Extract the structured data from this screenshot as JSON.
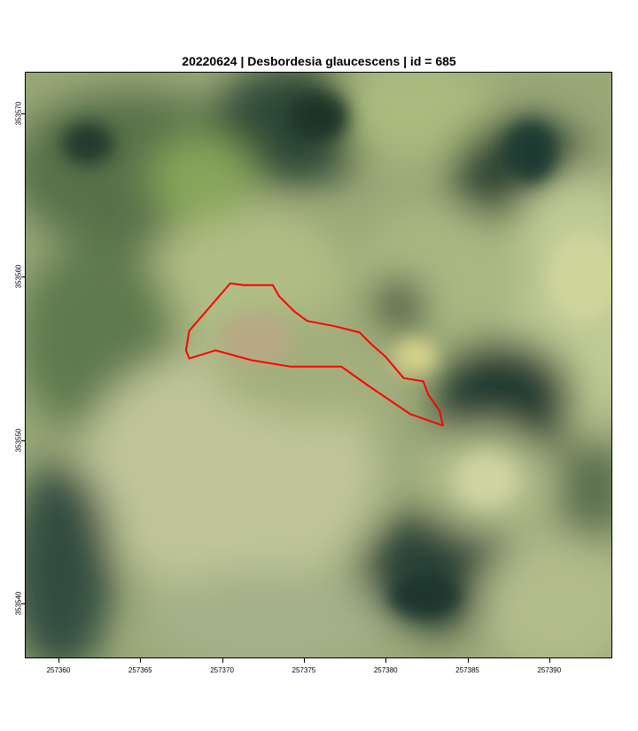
{
  "title": "20220624 | Desbordesia glaucescens | id = 685",
  "colors": {
    "polygon_stroke": "#ff0000",
    "axis": "#000000"
  },
  "map": {
    "x_range": [
      257358,
      257393.8
    ],
    "y_range": [
      353536.7,
      353572.5
    ],
    "x_ticks": [
      {
        "value": 257360,
        "label": "257360"
      },
      {
        "value": 257365,
        "label": "257365"
      },
      {
        "value": 257370,
        "label": "257370"
      },
      {
        "value": 257375,
        "label": "257375"
      },
      {
        "value": 257380,
        "label": "257380"
      },
      {
        "value": 257385,
        "label": "257385"
      },
      {
        "value": 257390,
        "label": "257390"
      }
    ],
    "y_ticks": [
      {
        "value": 353540,
        "label": "353540"
      },
      {
        "value": 353550,
        "label": "353550"
      },
      {
        "value": 353560,
        "label": "353560"
      },
      {
        "value": 353570,
        "label": "353570"
      }
    ],
    "crown_polygon": [
      [
        257370.5,
        353559.6
      ],
      [
        257371.3,
        353559.5
      ],
      [
        257372.2,
        353559.5
      ],
      [
        257373.1,
        353559.5
      ],
      [
        257373.5,
        353558.8
      ],
      [
        257374.4,
        353557.9
      ],
      [
        257375.2,
        353557.3
      ],
      [
        257376.8,
        353557.0
      ],
      [
        257378.4,
        353556.6
      ],
      [
        257379.1,
        353555.9
      ],
      [
        257380.0,
        353555.1
      ],
      [
        257381.1,
        353553.8
      ],
      [
        257382.3,
        353553.6
      ],
      [
        257382.6,
        353552.8
      ],
      [
        257383.3,
        353551.8
      ],
      [
        257383.5,
        353550.9
      ],
      [
        257381.5,
        353551.6
      ],
      [
        257379.0,
        353553.3
      ],
      [
        257377.3,
        353554.5
      ],
      [
        257374.2,
        353554.5
      ],
      [
        257371.8,
        353554.9
      ],
      [
        257369.6,
        353555.5
      ],
      [
        257368.0,
        353555.0
      ],
      [
        257367.8,
        353555.5
      ],
      [
        257368.0,
        353556.7
      ]
    ]
  }
}
